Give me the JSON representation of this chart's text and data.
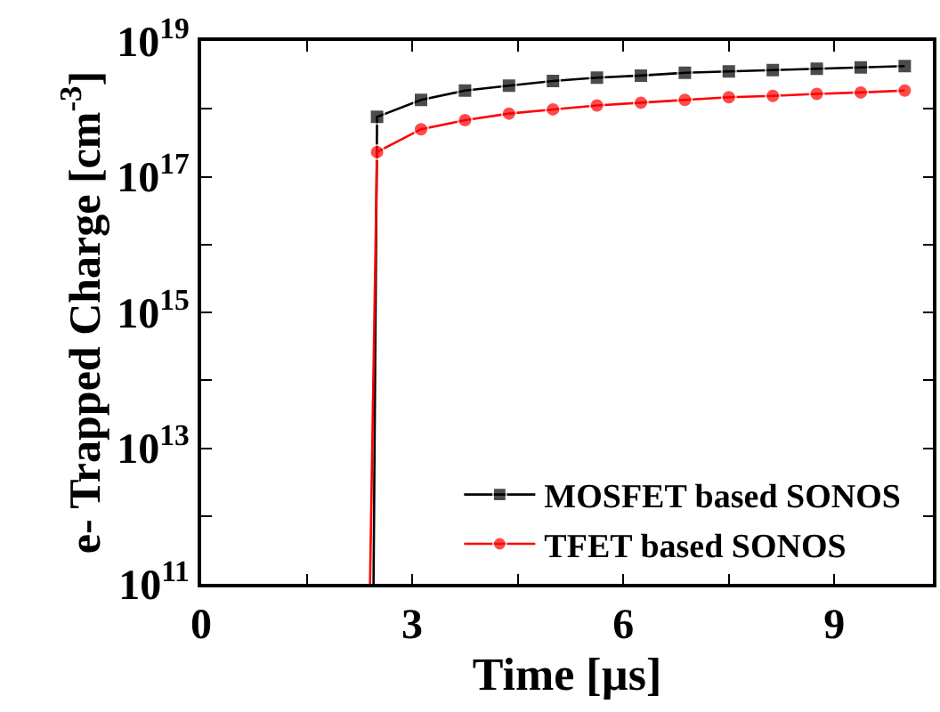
{
  "chart_data": {
    "type": "line",
    "xlabel": "Time [µs]",
    "ylabel": "e- Trapped Charge [cm$^{-3}$]",
    "log": "y",
    "legend": "bottom right",
    "xlim": [
      0,
      10.4
    ],
    "xticks": [
      0,
      {
        "value": 1.5,
        "label": null
      },
      3,
      {
        "value": 4.5,
        "label": null
      },
      6,
      {
        "value": 7.5,
        "label": null
      },
      9
    ],
    "ylim": [
      100000000000.0,
      1e+19
    ],
    "yticks": [
      {
        "value": 100000000000.0,
        "label": "10$^{11}$"
      },
      {
        "value": 1000000000000.0,
        "label": null
      },
      {
        "value": 10000000000000.0,
        "label": "10$^{13}$"
      },
      {
        "value": 100000000000000.0,
        "label": null
      },
      {
        "value": 1000000000000000.0,
        "label": "10$^{15}$"
      },
      {
        "value": 1e+16,
        "label": null
      },
      {
        "value": 1e+17,
        "label": "10$^{17}$"
      },
      {
        "value": 1e+18,
        "label": null
      },
      {
        "value": 1e+19,
        "label": "10$^{19}$"
      }
    ],
    "series": [
      {
        "name": "MOSFET based SONOS",
        "color": "#000000",
        "marker": "square",
        "x": [
          2.45,
          2.5,
          3.125,
          3.75,
          4.375,
          5.0,
          5.625,
          6.25,
          6.875,
          7.5,
          8.125,
          8.75,
          9.375,
          10.0
        ],
        "values": [
          100000000000.0,
          7.6e+17,
          1.35e+18,
          1.86e+18,
          2.19e+18,
          2.57e+18,
          2.88e+18,
          3.09e+18,
          3.39e+18,
          3.55e+18,
          3.72e+18,
          3.89e+18,
          4.07e+18,
          4.27e+18
        ]
      },
      {
        "name": "TFET based SONOS",
        "color": "#ff0000",
        "marker": "circle",
        "x": [
          2.4,
          2.5,
          3.125,
          3.75,
          4.375,
          5.0,
          5.625,
          6.25,
          6.875,
          7.5,
          8.125,
          8.75,
          9.375,
          10.0
        ],
        "values": [
          100000000000.0,
          2.3e+17,
          5e+17,
          6.8e+17,
          8.5e+17,
          9.8e+17,
          1.12e+18,
          1.23e+18,
          1.35e+18,
          1.48e+18,
          1.55e+18,
          1.66e+18,
          1.74e+18,
          1.86e+18
        ]
      }
    ]
  }
}
